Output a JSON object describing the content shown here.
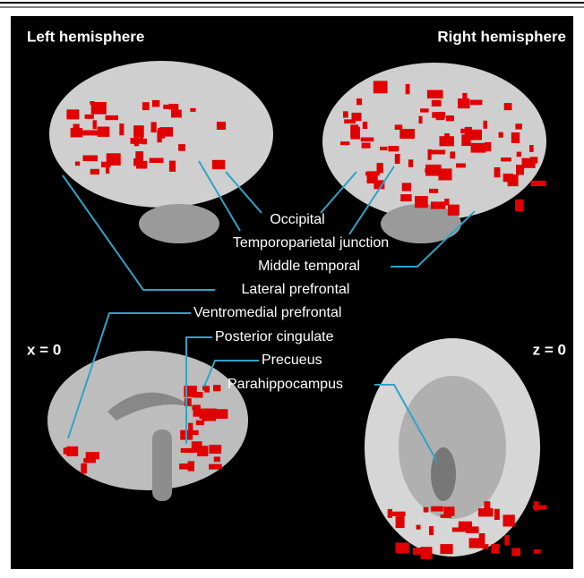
{
  "panel": {
    "left_title": "Left hemisphere",
    "right_title": "Right hemisphere",
    "x_label": "x = 0",
    "z_label": "z = 0"
  },
  "labels": [
    "Occipital",
    "Temporoparietal junction",
    "Middle temporal",
    "Lateral prefrontal",
    "Ventromedial prefrontal",
    "Posterior cingulate",
    "Precueus",
    "Parahippocampus"
  ]
}
